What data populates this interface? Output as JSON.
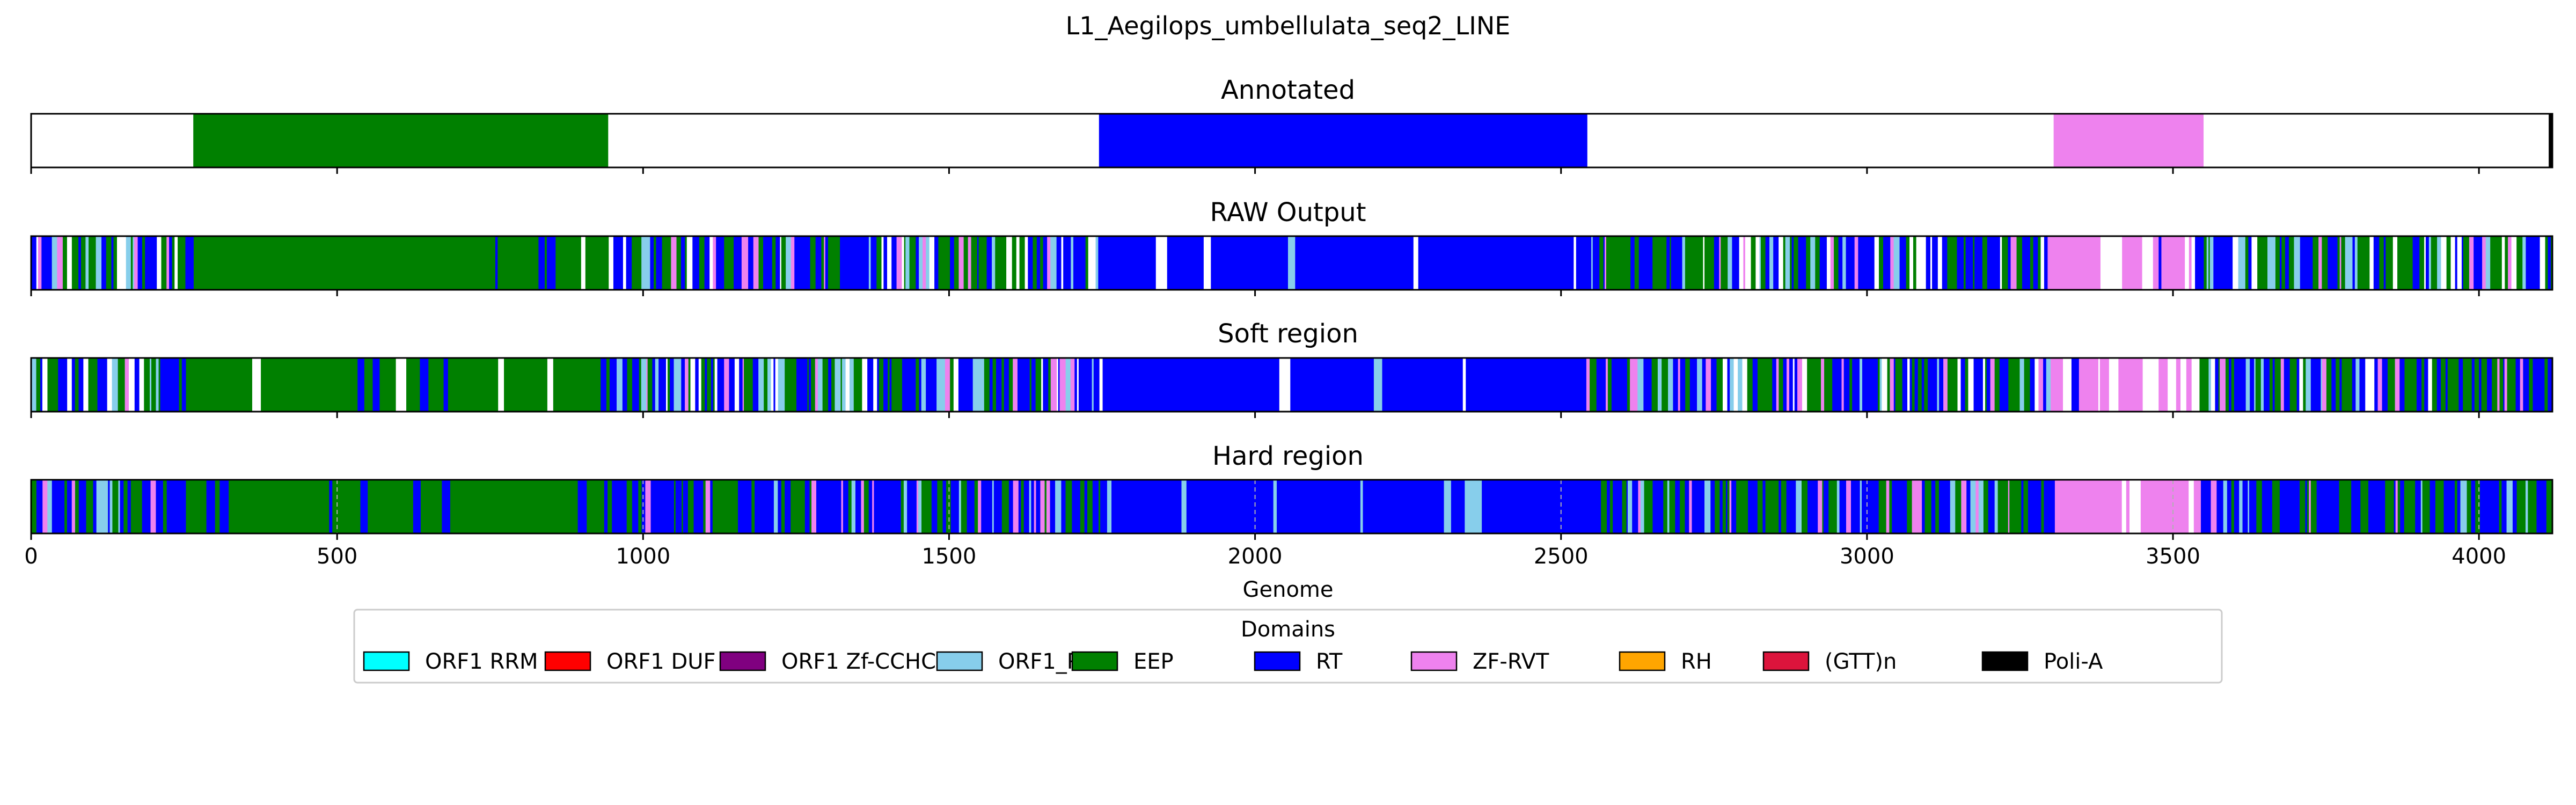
{
  "chart_data": {
    "type": "heatmap",
    "title": "L1_Aegilops_umbellulata_seq2_LINE",
    "xlabel": "Genome",
    "xlim": [
      0,
      4120
    ],
    "xticks": [
      0,
      500,
      1000,
      1500,
      2000,
      2500,
      3000,
      3500,
      4000
    ],
    "domains": [
      {
        "name": "ORF1 RRM",
        "color": "#00FFFF"
      },
      {
        "name": "ORF1 DUF",
        "color": "#FF0000"
      },
      {
        "name": "ORF1 Zf-CCHC",
        "color": "#800080"
      },
      {
        "name": "ORF1_PHA",
        "color": "#87CEEB"
      },
      {
        "name": "EEP",
        "color": "#008000"
      },
      {
        "name": "RT",
        "color": "#0000FF"
      },
      {
        "name": "ZF-RVT",
        "color": "#EE82EE"
      },
      {
        "name": "RH",
        "color": "#FFA500"
      },
      {
        "name": "(GTT)n",
        "color": "#DC143C"
      },
      {
        "name": "Poli-A",
        "color": "#000000"
      }
    ],
    "legend_title": "Domains",
    "legend_position": "bottom-center",
    "tracks": [
      {
        "title": "Annotated",
        "segments": [
          {
            "domain": "EEP",
            "start": 265,
            "end": 943
          },
          {
            "domain": "RT",
            "start": 1745,
            "end": 2543
          },
          {
            "domain": "ZF-RVT",
            "start": 3305,
            "end": 3550
          },
          {
            "domain": "Poli-A",
            "start": 4114,
            "end": 4120
          }
        ]
      },
      {
        "title": "RAW Output",
        "dense_blocks": [
          {
            "domain": "EEP",
            "start": 265,
            "end": 930
          },
          {
            "domain": "RT",
            "start": 1740,
            "end": 2540
          },
          {
            "domain": "ZF-RVT",
            "start": 3300,
            "end": 3535
          }
        ],
        "noise": "mixed RT/EEP/ZF-RVT/ORF1_PHA/empty calls elsewhere"
      },
      {
        "title": "Soft region",
        "dense_blocks": [
          {
            "domain": "EEP",
            "start": 265,
            "end": 930
          },
          {
            "domain": "RT",
            "start": 1740,
            "end": 2540
          },
          {
            "domain": "ZF-RVT",
            "start": 3300,
            "end": 3535
          }
        ],
        "noise": "mixed RT/EEP/ZF-RVT/ORF1_PHA/empty calls elsewhere"
      },
      {
        "title": "Hard region",
        "dense_blocks": [
          {
            "domain": "EEP",
            "start": 265,
            "end": 930
          },
          {
            "domain": "RT",
            "start": 1745,
            "end": 2540
          },
          {
            "domain": "ZF-RVT",
            "start": 3300,
            "end": 3545
          }
        ],
        "noise": "mixed RT/EEP/ZF-RVT/ORF1_PHA calls elsewhere",
        "grid": true
      }
    ]
  }
}
